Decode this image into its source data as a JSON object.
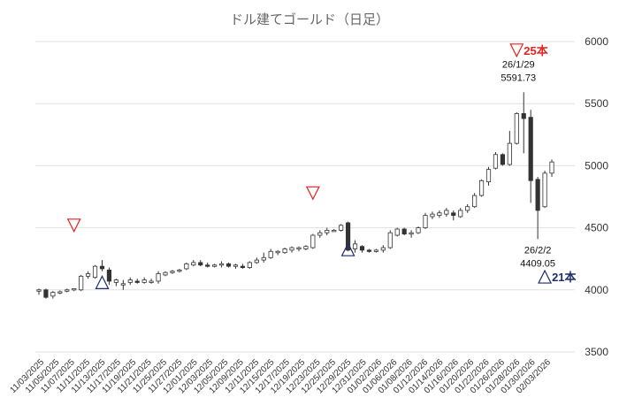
{
  "chart_data": {
    "type": "candlestick",
    "title": "ドル建てゴールド（日足）",
    "ylim": [
      3500,
      6000
    ],
    "yticks": [
      3500,
      4000,
      4500,
      5000,
      5500,
      6000
    ],
    "grid": "horizontal",
    "x_labels": [
      "11/03/2025",
      "11/05/2025",
      "11/07/2025",
      "11/11/2025",
      "11/13/2025",
      "11/17/2025",
      "11/19/2025",
      "11/21/2025",
      "11/25/2025",
      "11/27/2025",
      "12/01/2025",
      "12/03/2025",
      "12/05/2025",
      "12/09/2025",
      "12/11/2025",
      "12/15/2025",
      "12/17/2025",
      "12/19/2025",
      "12/23/2025",
      "12/25/2025",
      "12/29/2025",
      "12/31/2025",
      "01/02/2026",
      "01/06/2026",
      "01/08/2026",
      "01/12/2026",
      "01/14/2026",
      "01/16/2026",
      "01/20/2026",
      "01/22/2026",
      "01/26/2026",
      "01/28/2026",
      "01/30/2026",
      "02/03/2026"
    ],
    "candles": [
      {
        "o": 3990,
        "h": 4010,
        "l": 3960,
        "c": 4000
      },
      {
        "o": 4000,
        "h": 4010,
        "l": 3930,
        "c": 3940
      },
      {
        "o": 3950,
        "h": 3990,
        "l": 3930,
        "c": 3980
      },
      {
        "o": 3980,
        "h": 3995,
        "l": 3965,
        "c": 3985
      },
      {
        "o": 3990,
        "h": 4010,
        "l": 3980,
        "c": 4000
      },
      {
        "o": 4000,
        "h": 4010,
        "l": 3990,
        "c": 4010
      },
      {
        "o": 4000,
        "h": 4120,
        "l": 3990,
        "c": 4110
      },
      {
        "o": 4110,
        "h": 4150,
        "l": 4090,
        "c": 4130
      },
      {
        "o": 4100,
        "h": 4200,
        "l": 4090,
        "c": 4190
      },
      {
        "o": 4190,
        "h": 4240,
        "l": 4150,
        "c": 4170
      },
      {
        "o": 4160,
        "h": 4180,
        "l": 4040,
        "c": 4070
      },
      {
        "o": 4060,
        "h": 4090,
        "l": 4030,
        "c": 4080
      },
      {
        "o": 4050,
        "h": 4080,
        "l": 4000,
        "c": 4050
      },
      {
        "o": 4060,
        "h": 4100,
        "l": 4040,
        "c": 4080
      },
      {
        "o": 4070,
        "h": 4090,
        "l": 4050,
        "c": 4060
      },
      {
        "o": 4060,
        "h": 4100,
        "l": 4050,
        "c": 4080
      },
      {
        "o": 4060,
        "h": 4090,
        "l": 4050,
        "c": 4070
      },
      {
        "o": 4070,
        "h": 4150,
        "l": 4050,
        "c": 4130
      },
      {
        "o": 4120,
        "h": 4150,
        "l": 4110,
        "c": 4140
      },
      {
        "o": 4140,
        "h": 4160,
        "l": 4130,
        "c": 4150
      },
      {
        "o": 4150,
        "h": 4170,
        "l": 4140,
        "c": 4160
      },
      {
        "o": 4170,
        "h": 4220,
        "l": 4160,
        "c": 4210
      },
      {
        "o": 4200,
        "h": 4240,
        "l": 4190,
        "c": 4220
      },
      {
        "o": 4220,
        "h": 4240,
        "l": 4190,
        "c": 4200
      },
      {
        "o": 4200,
        "h": 4220,
        "l": 4180,
        "c": 4190
      },
      {
        "o": 4190,
        "h": 4210,
        "l": 4180,
        "c": 4200
      },
      {
        "o": 4200,
        "h": 4230,
        "l": 4180,
        "c": 4210
      },
      {
        "o": 4210,
        "h": 4220,
        "l": 4180,
        "c": 4190
      },
      {
        "o": 4190,
        "h": 4210,
        "l": 4170,
        "c": 4200
      },
      {
        "o": 4190,
        "h": 4210,
        "l": 4170,
        "c": 4180
      },
      {
        "o": 4180,
        "h": 4230,
        "l": 4170,
        "c": 4220
      },
      {
        "o": 4220,
        "h": 4260,
        "l": 4210,
        "c": 4240
      },
      {
        "o": 4240,
        "h": 4300,
        "l": 4220,
        "c": 4260
      },
      {
        "o": 4260,
        "h": 4330,
        "l": 4250,
        "c": 4310
      },
      {
        "o": 4300,
        "h": 4320,
        "l": 4280,
        "c": 4310
      },
      {
        "o": 4300,
        "h": 4340,
        "l": 4290,
        "c": 4330
      },
      {
        "o": 4320,
        "h": 4350,
        "l": 4300,
        "c": 4340
      },
      {
        "o": 4330,
        "h": 4350,
        "l": 4310,
        "c": 4340
      },
      {
        "o": 4330,
        "h": 4360,
        "l": 4320,
        "c": 4350
      },
      {
        "o": 4340,
        "h": 4450,
        "l": 4330,
        "c": 4440
      },
      {
        "o": 4440,
        "h": 4480,
        "l": 4420,
        "c": 4460
      },
      {
        "o": 4460,
        "h": 4500,
        "l": 4440,
        "c": 4480
      },
      {
        "o": 4480,
        "h": 4490,
        "l": 4470,
        "c": 4480
      },
      {
        "o": 4480,
        "h": 4530,
        "l": 4470,
        "c": 4520
      },
      {
        "o": 4540,
        "h": 4550,
        "l": 4310,
        "c": 4320
      },
      {
        "o": 4330,
        "h": 4400,
        "l": 4300,
        "c": 4370
      },
      {
        "o": 4350,
        "h": 4360,
        "l": 4300,
        "c": 4320
      },
      {
        "o": 4320,
        "h": 4330,
        "l": 4300,
        "c": 4310
      },
      {
        "o": 4310,
        "h": 4330,
        "l": 4300,
        "c": 4320
      },
      {
        "o": 4320,
        "h": 4360,
        "l": 4300,
        "c": 4340
      },
      {
        "o": 4340,
        "h": 4480,
        "l": 4330,
        "c": 4460
      },
      {
        "o": 4440,
        "h": 4500,
        "l": 4430,
        "c": 4490
      },
      {
        "o": 4490,
        "h": 4500,
        "l": 4440,
        "c": 4450
      },
      {
        "o": 4450,
        "h": 4480,
        "l": 4420,
        "c": 4460
      },
      {
        "o": 4460,
        "h": 4510,
        "l": 4450,
        "c": 4500
      },
      {
        "o": 4500,
        "h": 4620,
        "l": 4490,
        "c": 4600
      },
      {
        "o": 4590,
        "h": 4630,
        "l": 4570,
        "c": 4610
      },
      {
        "o": 4600,
        "h": 4640,
        "l": 4580,
        "c": 4620
      },
      {
        "o": 4610,
        "h": 4660,
        "l": 4590,
        "c": 4640
      },
      {
        "o": 4620,
        "h": 4640,
        "l": 4560,
        "c": 4600
      },
      {
        "o": 4590,
        "h": 4660,
        "l": 4580,
        "c": 4640
      },
      {
        "o": 4640,
        "h": 4690,
        "l": 4620,
        "c": 4670
      },
      {
        "o": 4670,
        "h": 4780,
        "l": 4660,
        "c": 4760
      },
      {
        "o": 4760,
        "h": 4890,
        "l": 4750,
        "c": 4880
      },
      {
        "o": 4870,
        "h": 4990,
        "l": 4840,
        "c": 4970
      },
      {
        "o": 4980,
        "h": 5110,
        "l": 4970,
        "c": 5090
      },
      {
        "o": 5090,
        "h": 5100,
        "l": 5000,
        "c": 5010
      },
      {
        "o": 5010,
        "h": 5280,
        "l": 5000,
        "c": 5180
      },
      {
        "o": 5180,
        "h": 5430,
        "l": 5170,
        "c": 5420
      },
      {
        "o": 5420,
        "h": 5591.73,
        "l": 5100,
        "c": 5380
      },
      {
        "o": 5390,
        "h": 5450,
        "l": 4700,
        "c": 4880
      },
      {
        "o": 4890,
        "h": 4910,
        "l": 4409.05,
        "c": 4640
      },
      {
        "o": 4670,
        "h": 4960,
        "l": 4660,
        "c": 4940
      },
      {
        "o": 4940,
        "h": 5050,
        "l": 4910,
        "c": 5030
      }
    ],
    "annotations": {
      "high": {
        "date": "26/1/29",
        "value": "5591.73"
      },
      "low": {
        "date": "26/2/2",
        "value": "4409.05"
      }
    },
    "signals": {
      "sell_marks": [
        {
          "candle": 5,
          "price": 4520,
          "label": ""
        },
        {
          "candle": 39,
          "price": 4780,
          "label": ""
        },
        {
          "candle": 68,
          "price": 5930,
          "label": "25本"
        }
      ],
      "buy_marks": [
        {
          "candle": 9,
          "price": 4060,
          "label": ""
        },
        {
          "candle": 44,
          "price": 4325,
          "label": ""
        },
        {
          "candle": 72,
          "price": 4105,
          "label": "21本"
        }
      ]
    },
    "colors": {
      "up": "#ffffff",
      "down": "#333333",
      "wick": "#333333",
      "sell": "#e52222",
      "buy": "#1f2d6b",
      "grid": "#e0e0e0"
    }
  }
}
